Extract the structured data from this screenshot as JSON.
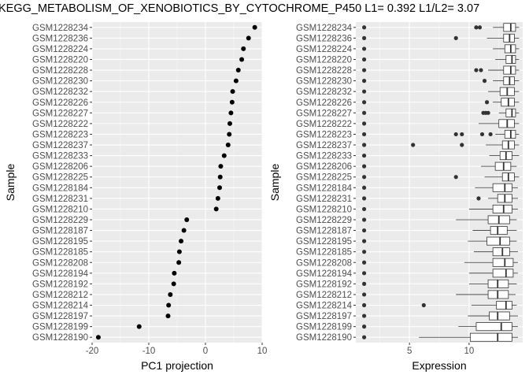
{
  "figure_title": "KEGG_METABOLISM_OF_XENOBIOTICS_BY_CYTOCHROME_P450 L1= 0.392 L1/L2= 3.07",
  "chart_data": [
    {
      "type": "scatter",
      "xlabel": "PC1 projection",
      "ylabel": "Sample",
      "xlim": [
        -20,
        10
      ],
      "xticks": [
        -20,
        -10,
        0,
        10
      ],
      "grid": true,
      "legend": "none",
      "categories": [
        "GSM1228234",
        "GSM1228236",
        "GSM1228224",
        "GSM1228220",
        "GSM1228228",
        "GSM1228230",
        "GSM1228232",
        "GSM1228226",
        "GSM1228227",
        "GSM1228222",
        "GSM1228223",
        "GSM1228237",
        "GSM1228233",
        "GSM1228206",
        "GSM1228225",
        "GSM1228184",
        "GSM1228231",
        "GSM1228210",
        "GSM1228229",
        "GSM1228187",
        "GSM1228195",
        "GSM1228185",
        "GSM1228208",
        "GSM1228194",
        "GSM1228192",
        "GSM1228212",
        "GSM1228214",
        "GSM1228197",
        "GSM1228199",
        "GSM1228190"
      ],
      "values": [
        8.7,
        7.6,
        6.7,
        6.4,
        5.8,
        5.4,
        4.8,
        4.7,
        4.5,
        4.3,
        4.2,
        4.0,
        3.3,
        2.7,
        2.6,
        2.5,
        2.2,
        1.9,
        -3.3,
        -3.8,
        -4.3,
        -4.6,
        -4.7,
        -5.5,
        -5.6,
        -6.2,
        -6.5,
        -6.6,
        -11.7,
        -18.9
      ]
    },
    {
      "type": "box",
      "xlabel": "Expression",
      "ylabel": "Sample",
      "xlim": [
        0.5,
        14.5
      ],
      "xticks": [
        5,
        10
      ],
      "grid": true,
      "legend": "none",
      "categories": [
        "GSM1228234",
        "GSM1228236",
        "GSM1228224",
        "GSM1228220",
        "GSM1228228",
        "GSM1228230",
        "GSM1228232",
        "GSM1228226",
        "GSM1228227",
        "GSM1228222",
        "GSM1228223",
        "GSM1228237",
        "GSM1228233",
        "GSM1228206",
        "GSM1228225",
        "GSM1228184",
        "GSM1228231",
        "GSM1228210",
        "GSM1228229",
        "GSM1228187",
        "GSM1228195",
        "GSM1228185",
        "GSM1228208",
        "GSM1228194",
        "GSM1228192",
        "GSM1228212",
        "GSM1228214",
        "GSM1228197",
        "GSM1228199",
        "GSM1228190"
      ],
      "boxes": [
        {
          "min": 12.0,
          "q1": 12.9,
          "median": 13.5,
          "q3": 13.9,
          "max": 14.2,
          "outliers": [
            1.2,
            10.6,
            10.9
          ]
        },
        {
          "min": 11.5,
          "q1": 12.9,
          "median": 13.4,
          "q3": 13.8,
          "max": 14.2,
          "outliers": [
            1.2,
            8.9
          ]
        },
        {
          "min": 12.0,
          "q1": 13.0,
          "median": 13.5,
          "q3": 13.9,
          "max": 14.2,
          "outliers": [
            1.2
          ]
        },
        {
          "min": 12.2,
          "q1": 13.1,
          "median": 13.6,
          "q3": 13.9,
          "max": 14.2,
          "outliers": [
            1.2
          ]
        },
        {
          "min": 11.6,
          "q1": 12.9,
          "median": 13.5,
          "q3": 13.9,
          "max": 14.2,
          "outliers": [
            1.2,
            10.6,
            11.0
          ]
        },
        {
          "min": 12.0,
          "q1": 12.9,
          "median": 13.4,
          "q3": 13.8,
          "max": 14.2,
          "outliers": [
            1.2,
            11.3
          ]
        },
        {
          "min": 11.6,
          "q1": 12.6,
          "median": 13.2,
          "q3": 13.8,
          "max": 14.2,
          "outliers": [
            1.2
          ]
        },
        {
          "min": 12.0,
          "q1": 12.7,
          "median": 13.3,
          "q3": 13.8,
          "max": 14.2,
          "outliers": [
            1.2,
            11.5
          ]
        },
        {
          "min": 12.5,
          "q1": 13.1,
          "median": 13.6,
          "q3": 13.9,
          "max": 14.2,
          "outliers": [
            1.2,
            11.2,
            11.4,
            11.6
          ]
        },
        {
          "min": 10.8,
          "q1": 12.5,
          "median": 13.2,
          "q3": 13.8,
          "max": 14.2,
          "outliers": [
            1.2
          ]
        },
        {
          "min": 12.2,
          "q1": 13.0,
          "median": 13.5,
          "q3": 13.9,
          "max": 14.2,
          "outliers": [
            1.2,
            8.9,
            9.4,
            11.1,
            11.8
          ]
        },
        {
          "min": 11.4,
          "q1": 12.8,
          "median": 13.3,
          "q3": 13.8,
          "max": 14.2,
          "outliers": [
            1.2,
            5.3,
            9.4
          ]
        },
        {
          "min": 11.7,
          "q1": 12.6,
          "median": 13.1,
          "q3": 13.6,
          "max": 14.2,
          "outliers": [
            1.2
          ]
        },
        {
          "min": 11.0,
          "q1": 12.2,
          "median": 12.9,
          "q3": 13.5,
          "max": 14.0,
          "outliers": [
            1.2
          ]
        },
        {
          "min": 11.3,
          "q1": 12.8,
          "median": 13.3,
          "q3": 13.8,
          "max": 14.2,
          "outliers": [
            1.2,
            8.9
          ]
        },
        {
          "min": 10.5,
          "q1": 12.0,
          "median": 13.0,
          "q3": 13.6,
          "max": 14.1,
          "outliers": [
            1.2
          ]
        },
        {
          "min": 11.6,
          "q1": 12.4,
          "median": 13.0,
          "q3": 13.6,
          "max": 14.1,
          "outliers": [
            1.2,
            10.8
          ]
        },
        {
          "min": 10.0,
          "q1": 12.0,
          "median": 12.9,
          "q3": 13.6,
          "max": 14.1,
          "outliers": [
            1.2
          ]
        },
        {
          "min": 8.9,
          "q1": 11.6,
          "median": 12.5,
          "q3": 13.4,
          "max": 14.0,
          "outliers": [
            1.2
          ]
        },
        {
          "min": 10.3,
          "q1": 11.8,
          "median": 12.4,
          "q3": 13.2,
          "max": 14.0,
          "outliers": [
            1.2
          ]
        },
        {
          "min": 9.9,
          "q1": 11.5,
          "median": 12.6,
          "q3": 13.4,
          "max": 14.0,
          "outliers": [
            1.2
          ]
        },
        {
          "min": 10.4,
          "q1": 12.0,
          "median": 12.8,
          "q3": 13.4,
          "max": 14.1,
          "outliers": [
            1.2
          ]
        },
        {
          "min": 9.6,
          "q1": 12.0,
          "median": 13.0,
          "q3": 13.7,
          "max": 14.1,
          "outliers": [
            1.2
          ]
        },
        {
          "min": 10.0,
          "q1": 12.0,
          "median": 13.1,
          "q3": 13.7,
          "max": 14.1,
          "outliers": [
            1.2
          ]
        },
        {
          "min": 10.0,
          "q1": 11.6,
          "median": 12.4,
          "q3": 13.3,
          "max": 14.0,
          "outliers": [
            1.2
          ]
        },
        {
          "min": 8.9,
          "q1": 11.6,
          "median": 12.4,
          "q3": 13.3,
          "max": 13.9,
          "outliers": [
            1.2
          ]
        },
        {
          "min": 10.2,
          "q1": 12.3,
          "median": 13.1,
          "q3": 13.6,
          "max": 14.0,
          "outliers": [
            1.2,
            6.2
          ]
        },
        {
          "min": 9.9,
          "q1": 11.7,
          "median": 12.4,
          "q3": 13.4,
          "max": 14.1,
          "outliers": [
            1.2
          ]
        },
        {
          "min": 9.1,
          "q1": 10.6,
          "median": 12.7,
          "q3": 13.6,
          "max": 14.1,
          "outliers": [
            1.2
          ]
        },
        {
          "min": 5.8,
          "q1": 10.1,
          "median": 12.4,
          "q3": 13.6,
          "max": 14.1,
          "outliers": [
            1.2
          ]
        }
      ]
    }
  ],
  "colors": {
    "panel_bg": "#ebebeb",
    "grid_major": "#ffffff",
    "points": "#000000",
    "box_fill": "#ffffff",
    "box_line": "#333333",
    "text": "#000000",
    "tick_text": "#4d4d4d"
  }
}
